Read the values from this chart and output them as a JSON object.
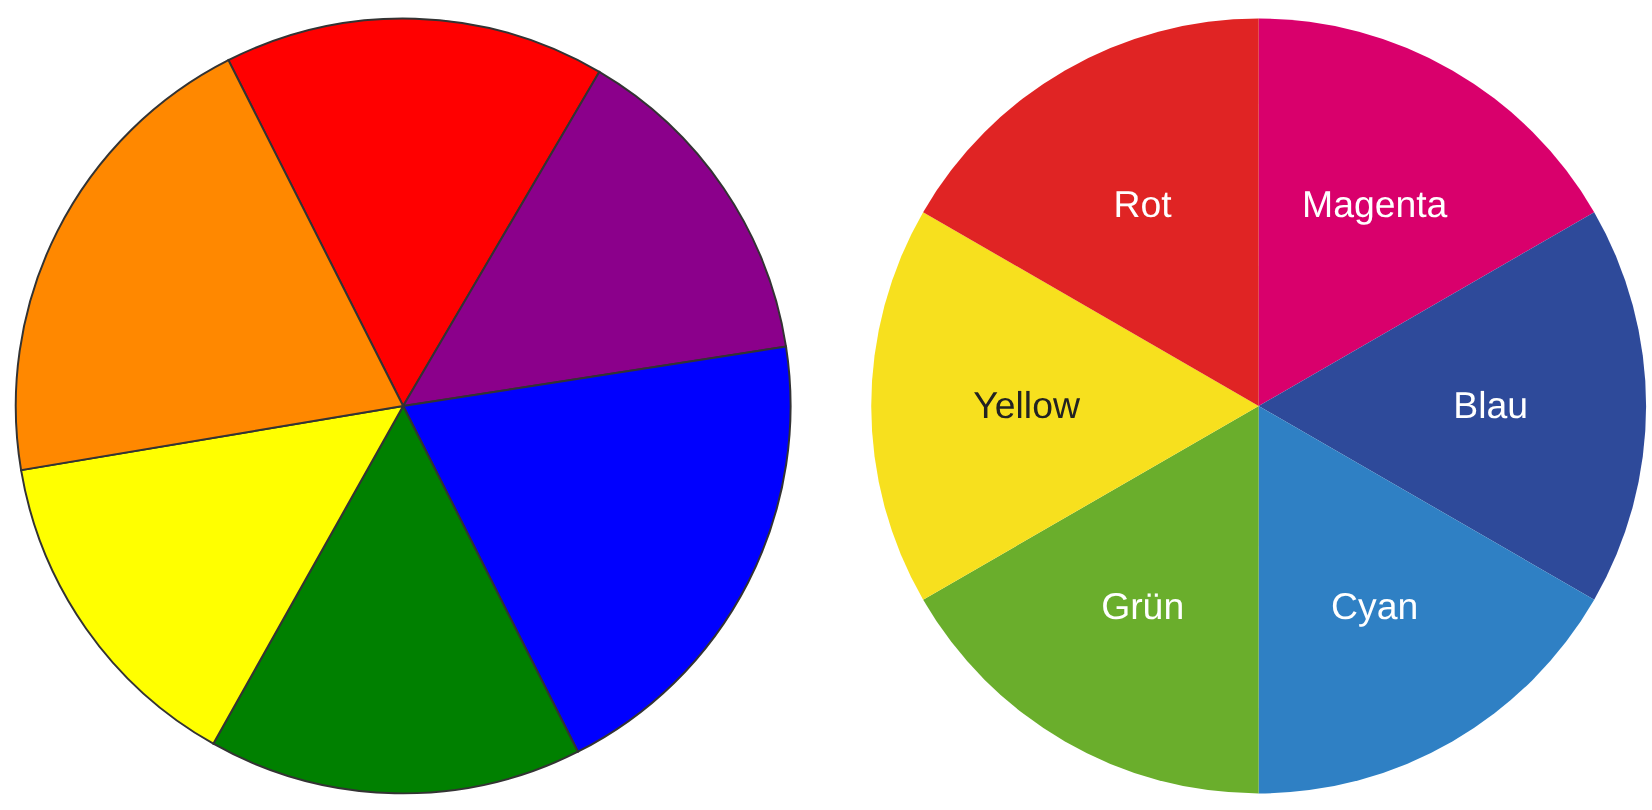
{
  "chart_data": [
    {
      "type": "pie",
      "categories": [
        null,
        null,
        null,
        null,
        null,
        null
      ],
      "values": [
        15.9,
        14.1,
        20.0,
        15.6,
        14.2,
        20.2
      ],
      "colors": [
        "#ff0000",
        "#8b008b",
        "#0000ff",
        "#008000",
        "#ffff00",
        "#ff8800"
      ]
    },
    {
      "type": "pie",
      "categories": [
        "Magenta",
        "Blau",
        "Cyan",
        "Grün",
        "Yellow",
        "Rot"
      ],
      "values": [
        16.67,
        16.67,
        16.67,
        16.67,
        16.67,
        16.67
      ],
      "colors": [
        "#d9006c",
        "#2e4a9a",
        "#2f80c4",
        "#6aae2c",
        "#f7e01e",
        "#e02424"
      ]
    }
  ]
}
